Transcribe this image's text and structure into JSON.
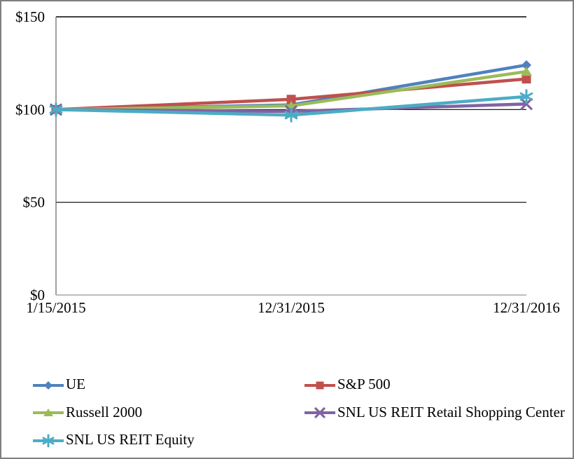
{
  "chart_data": {
    "type": "line",
    "title": "",
    "x_labels": [
      "1/15/2015",
      "12/31/2015",
      "12/31/2016"
    ],
    "y_ticks": [
      {
        "label": "$0",
        "value": 0
      },
      {
        "label": "$50",
        "value": 50
      },
      {
        "label": "$100",
        "value": 100
      },
      {
        "label": "$150",
        "value": 150
      }
    ],
    "ylim": [
      0,
      150
    ],
    "grid": "horizontal-gridlines-at-50-100-150",
    "legend_position": "bottom-two-columns",
    "series": [
      {
        "name": "UE",
        "color": "#4f81bd",
        "marker": "diamond",
        "values": [
          100,
          102.5,
          124
        ]
      },
      {
        "name": "S&P 500",
        "color": "#c0504d",
        "marker": "square",
        "values": [
          100,
          105.5,
          116.5
        ]
      },
      {
        "name": "Russell 2000",
        "color": "#9bbb59",
        "marker": "triangle",
        "values": [
          100,
          102,
          120.5
        ]
      },
      {
        "name": "SNL US REIT Retail Shopping Center",
        "color": "#8064a2",
        "marker": "x",
        "values": [
          100,
          99,
          103
        ]
      },
      {
        "name": "SNL US REIT Equity",
        "color": "#4bacc6",
        "marker": "asterisk",
        "values": [
          100,
          97,
          107
        ]
      }
    ]
  },
  "style_colors": {
    "outer_border": "#7f7f7f",
    "gridline": "#000000",
    "y_axis_line": "#6e6e6e",
    "x_axis_line": "#a6a6a6",
    "text": "#000000",
    "background": "#ffffff"
  }
}
